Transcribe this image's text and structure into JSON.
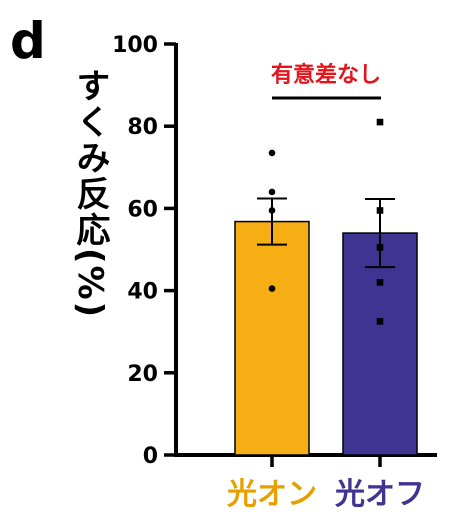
{
  "panel_label": "d",
  "chart_data": {
    "type": "bar",
    "title": "",
    "ylabel": "すくみ反応(%)",
    "xlabel": "",
    "ylim": [
      0,
      100
    ],
    "yticks": [
      0,
      20,
      40,
      60,
      80,
      100
    ],
    "grid": false,
    "legend": "none",
    "categories": [
      "光オン",
      "光オフ"
    ],
    "values": [
      56.8,
      54.0
    ],
    "errors": [
      5.6,
      8.3
    ],
    "points": [
      [
        73.5,
        64.0,
        59.5,
        40.5
      ],
      [
        81.0,
        59.5,
        50.5,
        42.0,
        32.5
      ]
    ],
    "point_markers": [
      "circle",
      "square"
    ],
    "colors": [
      "#f5ae14",
      "#3f3491"
    ],
    "label_colors": [
      "#e6a100",
      "#3f3491"
    ],
    "annotation": {
      "text": "有意差なし",
      "color": "#e4141b"
    }
  }
}
